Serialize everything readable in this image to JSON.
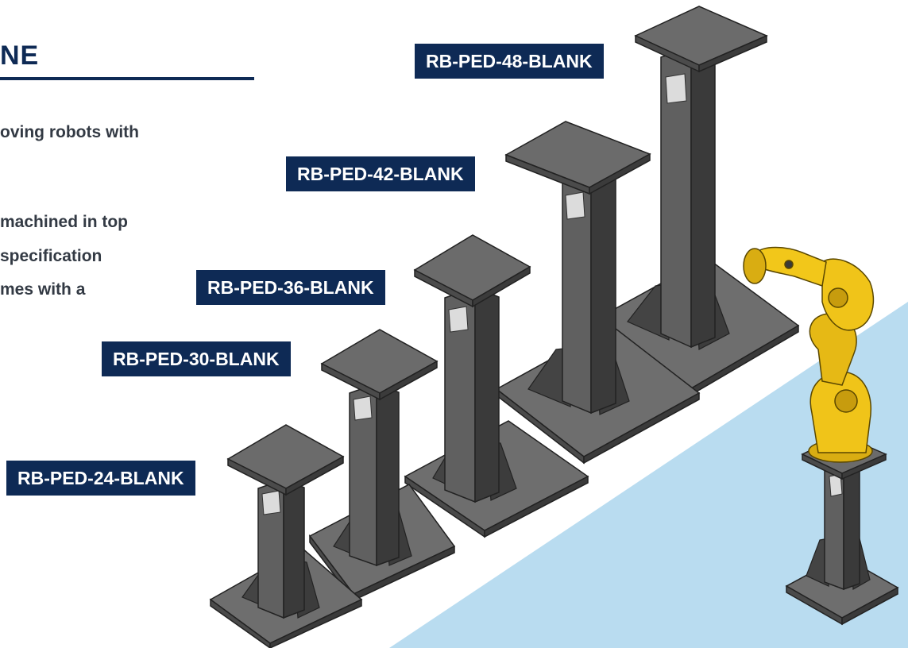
{
  "heading": "NE",
  "intro_lines": [
    "oving robots with",
    "machined in top",
    "specification",
    "mes with a"
  ],
  "models": [
    {
      "label": "RB-PED-48-BLANK"
    },
    {
      "label": "RB-PED-42-BLANK"
    },
    {
      "label": "RB-PED-36-BLANK"
    },
    {
      "label": "RB-PED-30-BLANK"
    },
    {
      "label": "RB-PED-24-BLANK"
    }
  ],
  "colors": {
    "navy": "#0e2a55",
    "pedestal_dark": "#3c3c3c",
    "pedestal_mid": "#585858",
    "pedestal_light": "#7a7a7a",
    "robot_yellow": "#f0c419",
    "floor_blue": "#b9dcf0"
  }
}
